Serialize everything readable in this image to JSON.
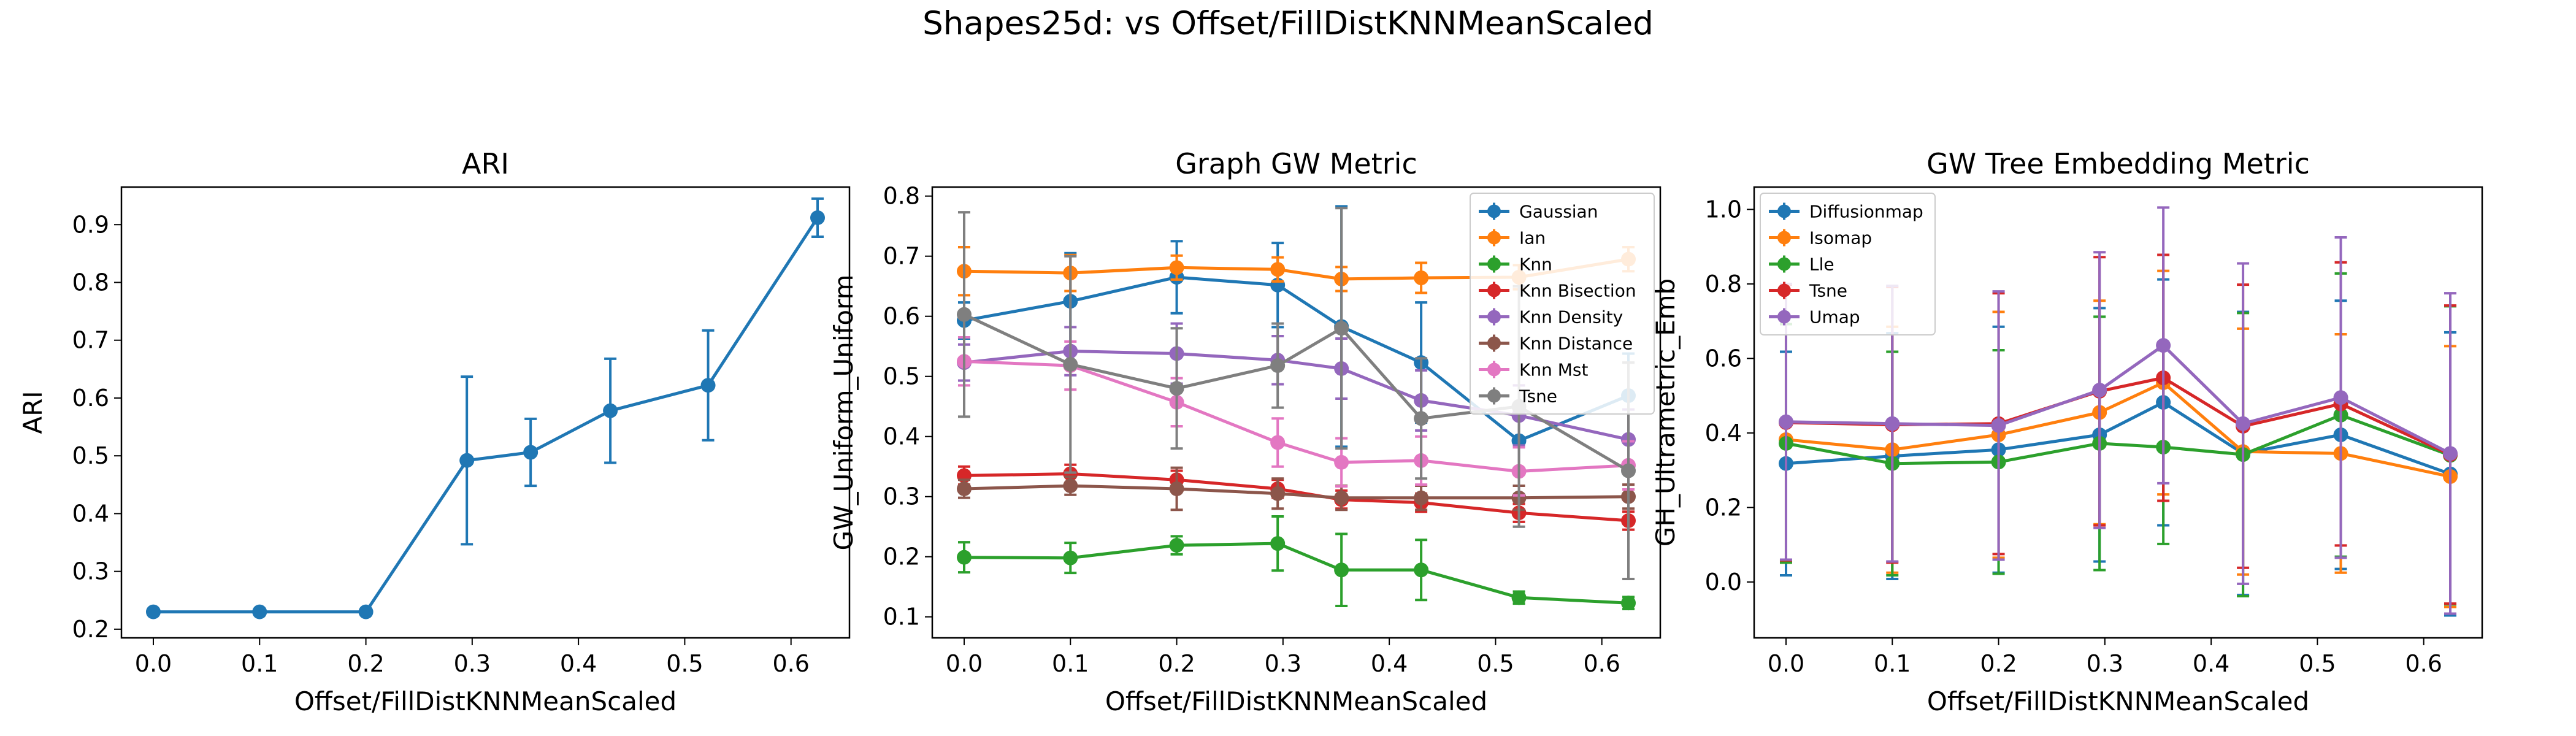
{
  "suptitle": "Shapes25d: vs Offset/FillDistKNNMeanScaled",
  "chart_data": [
    {
      "type": "line",
      "title": "ARI",
      "xlabel": "Offset/FillDistKNNMeanScaled",
      "ylabel": "ARI",
      "xlim": [
        -0.03,
        0.655
      ],
      "ylim": [
        0.185,
        0.965
      ],
      "xticks": [
        0.0,
        0.1,
        0.2,
        0.3,
        0.4,
        0.5,
        0.6
      ],
      "xtick_labels": [
        "0.0",
        "0.1",
        "0.2",
        "0.3",
        "0.4",
        "0.5",
        "0.6"
      ],
      "yticks": [
        0.2,
        0.3,
        0.4,
        0.5,
        0.6,
        0.7,
        0.8,
        0.9
      ],
      "ytick_labels": [
        "0.2",
        "0.3",
        "0.4",
        "0.5",
        "0.6",
        "0.7",
        "0.8",
        "0.9"
      ],
      "x": [
        0.0,
        0.1,
        0.2,
        0.295,
        0.355,
        0.43,
        0.522,
        0.625
      ],
      "series": [
        {
          "color": "#1f77b4",
          "values": [
            0.23,
            0.23,
            0.23,
            0.492,
            0.506,
            0.578,
            0.622,
            0.912
          ],
          "err": [
            0.0,
            0.0,
            0.0,
            0.145,
            0.058,
            0.09,
            0.095,
            0.033
          ]
        }
      ]
    },
    {
      "type": "line",
      "title": "Graph GW Metric",
      "xlabel": "Offset/FillDistKNNMeanScaled",
      "ylabel": "GW_Uniform_Uniform",
      "xlim": [
        -0.03,
        0.655
      ],
      "ylim": [
        0.065,
        0.815
      ],
      "xticks": [
        0.0,
        0.1,
        0.2,
        0.3,
        0.4,
        0.5,
        0.6
      ],
      "xtick_labels": [
        "0.0",
        "0.1",
        "0.2",
        "0.3",
        "0.4",
        "0.5",
        "0.6"
      ],
      "yticks": [
        0.1,
        0.2,
        0.3,
        0.4,
        0.5,
        0.6,
        0.7,
        0.8
      ],
      "ytick_labels": [
        "0.1",
        "0.2",
        "0.3",
        "0.4",
        "0.5",
        "0.6",
        "0.7",
        "0.8"
      ],
      "legend": "top-right",
      "x": [
        0.0,
        0.1,
        0.2,
        0.295,
        0.355,
        0.43,
        0.522,
        0.625
      ],
      "series": [
        {
          "name": "Gaussian",
          "color": "#1f77b4",
          "values": [
            0.593,
            0.625,
            0.665,
            0.652,
            0.583,
            0.523,
            0.393,
            0.468
          ],
          "err": [
            0.03,
            0.08,
            0.06,
            0.07,
            0.2,
            0.1,
            0.05,
            0.07
          ]
        },
        {
          "name": "Ian",
          "color": "#ff7f0e",
          "values": [
            0.675,
            0.672,
            0.681,
            0.678,
            0.662,
            0.664,
            0.665,
            0.695
          ],
          "err": [
            0.04,
            0.03,
            0.02,
            0.02,
            0.02,
            0.025,
            0.02,
            0.02
          ]
        },
        {
          "name": "Knn",
          "color": "#2ca02c",
          "values": [
            0.199,
            0.198,
            0.219,
            0.222,
            0.178,
            0.178,
            0.132,
            0.123
          ],
          "err": [
            0.025,
            0.025,
            0.015,
            0.045,
            0.06,
            0.05,
            0.01,
            0.01
          ]
        },
        {
          "name": "Knn Bisection",
          "color": "#d62728",
          "values": [
            0.335,
            0.338,
            0.328,
            0.313,
            0.295,
            0.29,
            0.273,
            0.26
          ],
          "err": [
            0.015,
            0.015,
            0.015,
            0.015,
            0.015,
            0.015,
            0.015,
            0.015
          ]
        },
        {
          "name": "Knn Density",
          "color": "#9467bd",
          "values": [
            0.523,
            0.542,
            0.538,
            0.527,
            0.513,
            0.46,
            0.435,
            0.395
          ],
          "err": [
            0.03,
            0.04,
            0.05,
            0.04,
            0.05,
            0.05,
            0.05,
            0.05
          ]
        },
        {
          "name": "Knn Distance",
          "color": "#8c564b",
          "values": [
            0.313,
            0.318,
            0.313,
            0.305,
            0.298,
            0.298,
            0.298,
            0.3
          ],
          "err": [
            0.015,
            0.015,
            0.035,
            0.025,
            0.02,
            0.02,
            0.02,
            0.02
          ]
        },
        {
          "name": "Knn Mst",
          "color": "#e377c2",
          "values": [
            0.525,
            0.518,
            0.457,
            0.39,
            0.357,
            0.36,
            0.342,
            0.352
          ],
          "err": [
            0.04,
            0.04,
            0.04,
            0.04,
            0.04,
            0.04,
            0.04,
            0.04
          ]
        },
        {
          "name": "Tsne",
          "color": "#7f7f7f",
          "values": [
            0.603,
            0.52,
            0.48,
            0.518,
            0.58,
            0.43,
            0.45,
            0.343
          ],
          "err": [
            0.17,
            0.18,
            0.1,
            0.07,
            0.2,
            0.1,
            0.2,
            0.18
          ]
        }
      ]
    },
    {
      "type": "line",
      "title": "GW Tree Embedding Metric",
      "xlabel": "Offset/FillDistKNNMeanScaled",
      "ylabel": "GH_Ultrametric_Emb",
      "xlim": [
        -0.03,
        0.655
      ],
      "ylim": [
        -0.15,
        1.06
      ],
      "xticks": [
        0.0,
        0.1,
        0.2,
        0.3,
        0.4,
        0.5,
        0.6
      ],
      "xtick_labels": [
        "0.0",
        "0.1",
        "0.2",
        "0.3",
        "0.4",
        "0.5",
        "0.6"
      ],
      "yticks": [
        0.0,
        0.2,
        0.4,
        0.6,
        0.8,
        1.0
      ],
      "ytick_labels": [
        "0.0",
        "0.2",
        "0.4",
        "0.6",
        "0.8",
        "1.0"
      ],
      "legend": "top-left",
      "x": [
        0.0,
        0.1,
        0.2,
        0.295,
        0.355,
        0.43,
        0.522,
        0.625
      ],
      "series": [
        {
          "name": "Diffusionmap",
          "color": "#1f77b4",
          "values": [
            0.318,
            0.338,
            0.355,
            0.395,
            0.482,
            0.345,
            0.395,
            0.29
          ],
          "err": [
            0.3,
            0.33,
            0.33,
            0.34,
            0.33,
            0.38,
            0.36,
            0.38
          ]
        },
        {
          "name": "Isomap",
          "color": "#ff7f0e",
          "values": [
            0.382,
            0.355,
            0.395,
            0.455,
            0.535,
            0.35,
            0.345,
            0.283
          ],
          "err": [
            0.33,
            0.33,
            0.33,
            0.3,
            0.3,
            0.33,
            0.32,
            0.35
          ]
        },
        {
          "name": "Lle",
          "color": "#2ca02c",
          "values": [
            0.372,
            0.318,
            0.322,
            0.372,
            0.362,
            0.342,
            0.448,
            0.34
          ],
          "err": [
            0.32,
            0.3,
            0.3,
            0.34,
            0.26,
            0.38,
            0.38,
            0.4
          ]
        },
        {
          "name": "Tsne",
          "color": "#d62728",
          "values": [
            0.428,
            0.422,
            0.425,
            0.512,
            0.548,
            0.418,
            0.478,
            0.342
          ],
          "err": [
            0.37,
            0.37,
            0.35,
            0.36,
            0.33,
            0.38,
            0.38,
            0.4
          ]
        },
        {
          "name": "Umap",
          "color": "#9467bd",
          "values": [
            0.43,
            0.425,
            0.42,
            0.515,
            0.635,
            0.425,
            0.495,
            0.345
          ],
          "err": [
            0.37,
            0.37,
            0.36,
            0.37,
            0.37,
            0.43,
            0.43,
            0.43
          ]
        }
      ]
    }
  ]
}
